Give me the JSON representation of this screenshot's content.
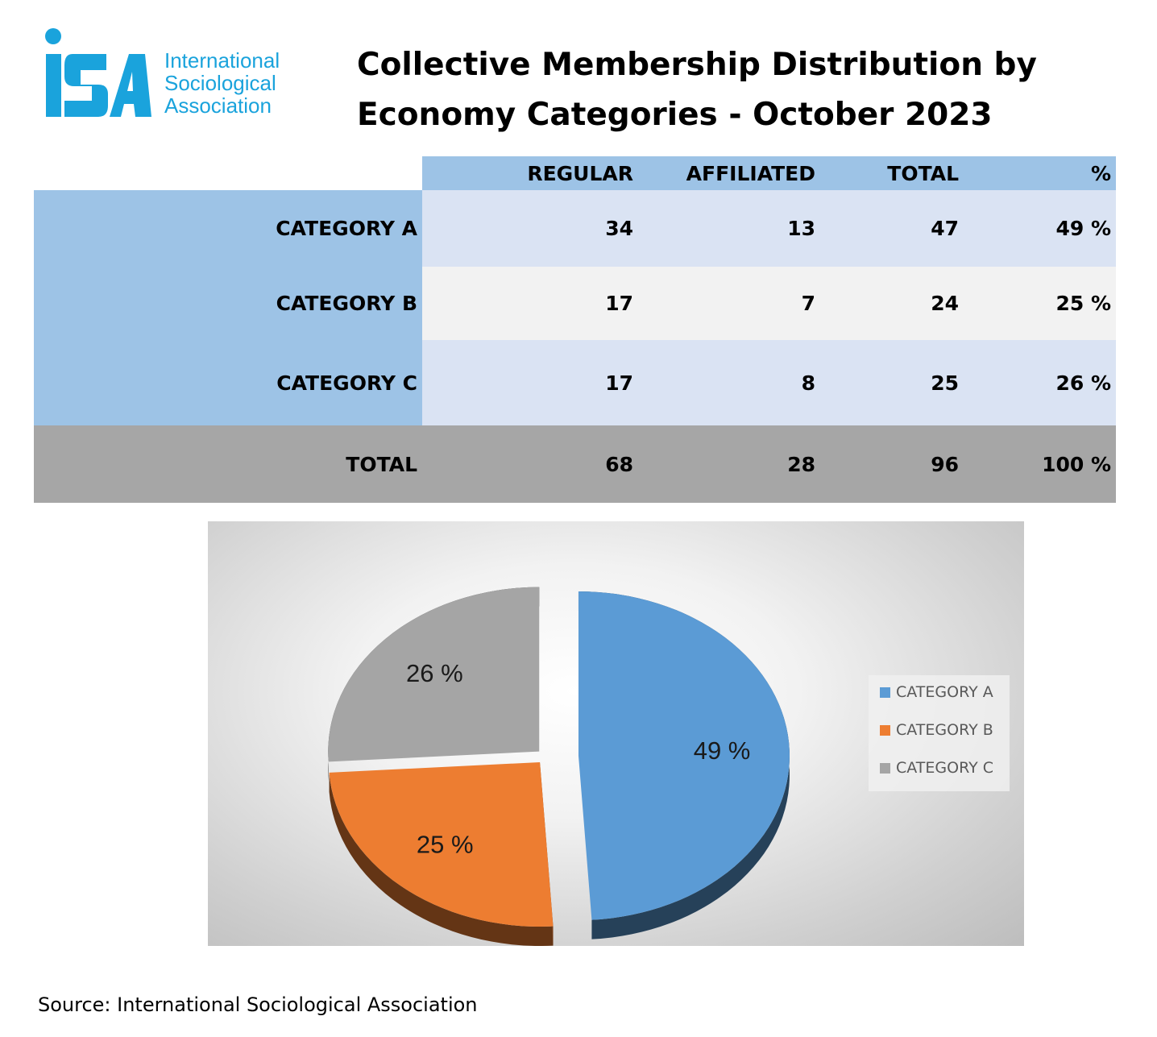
{
  "logo": {
    "mark": "iSA",
    "lines": [
      "International",
      "Sociological",
      "Association"
    ],
    "color": "#1aa3dc"
  },
  "title": {
    "line1": "Collective Membership Distribution by",
    "line2": "Economy Categories - October 2023"
  },
  "table": {
    "headers": [
      "",
      "REGULAR",
      "AFFILIATED",
      "TOTAL",
      "%"
    ],
    "rows": [
      {
        "label": "CATEGORY A",
        "regular": "34",
        "affiliated": "13",
        "total": "47",
        "pct": "49 %"
      },
      {
        "label": "CATEGORY B",
        "regular": "17",
        "affiliated": "7",
        "total": "24",
        "pct": "25 %"
      },
      {
        "label": "CATEGORY C",
        "regular": "17",
        "affiliated": "8",
        "total": "25",
        "pct": "26 %"
      }
    ],
    "total": {
      "label": "TOTAL",
      "regular": "68",
      "affiliated": "28",
      "total": "96",
      "pct": "100 %"
    }
  },
  "chart_data": {
    "type": "pie",
    "categories": [
      "CATEGORY A",
      "CATEGORY B",
      "CATEGORY C"
    ],
    "values": [
      49,
      25,
      26
    ],
    "data_labels": [
      "49 %",
      "25 %",
      "26 %"
    ],
    "colors": [
      "#5b9bd5",
      "#ed7d31",
      "#a5a5a5"
    ],
    "legend": "right",
    "style": "3d-exploded"
  },
  "source": "Source: International Sociological Association"
}
